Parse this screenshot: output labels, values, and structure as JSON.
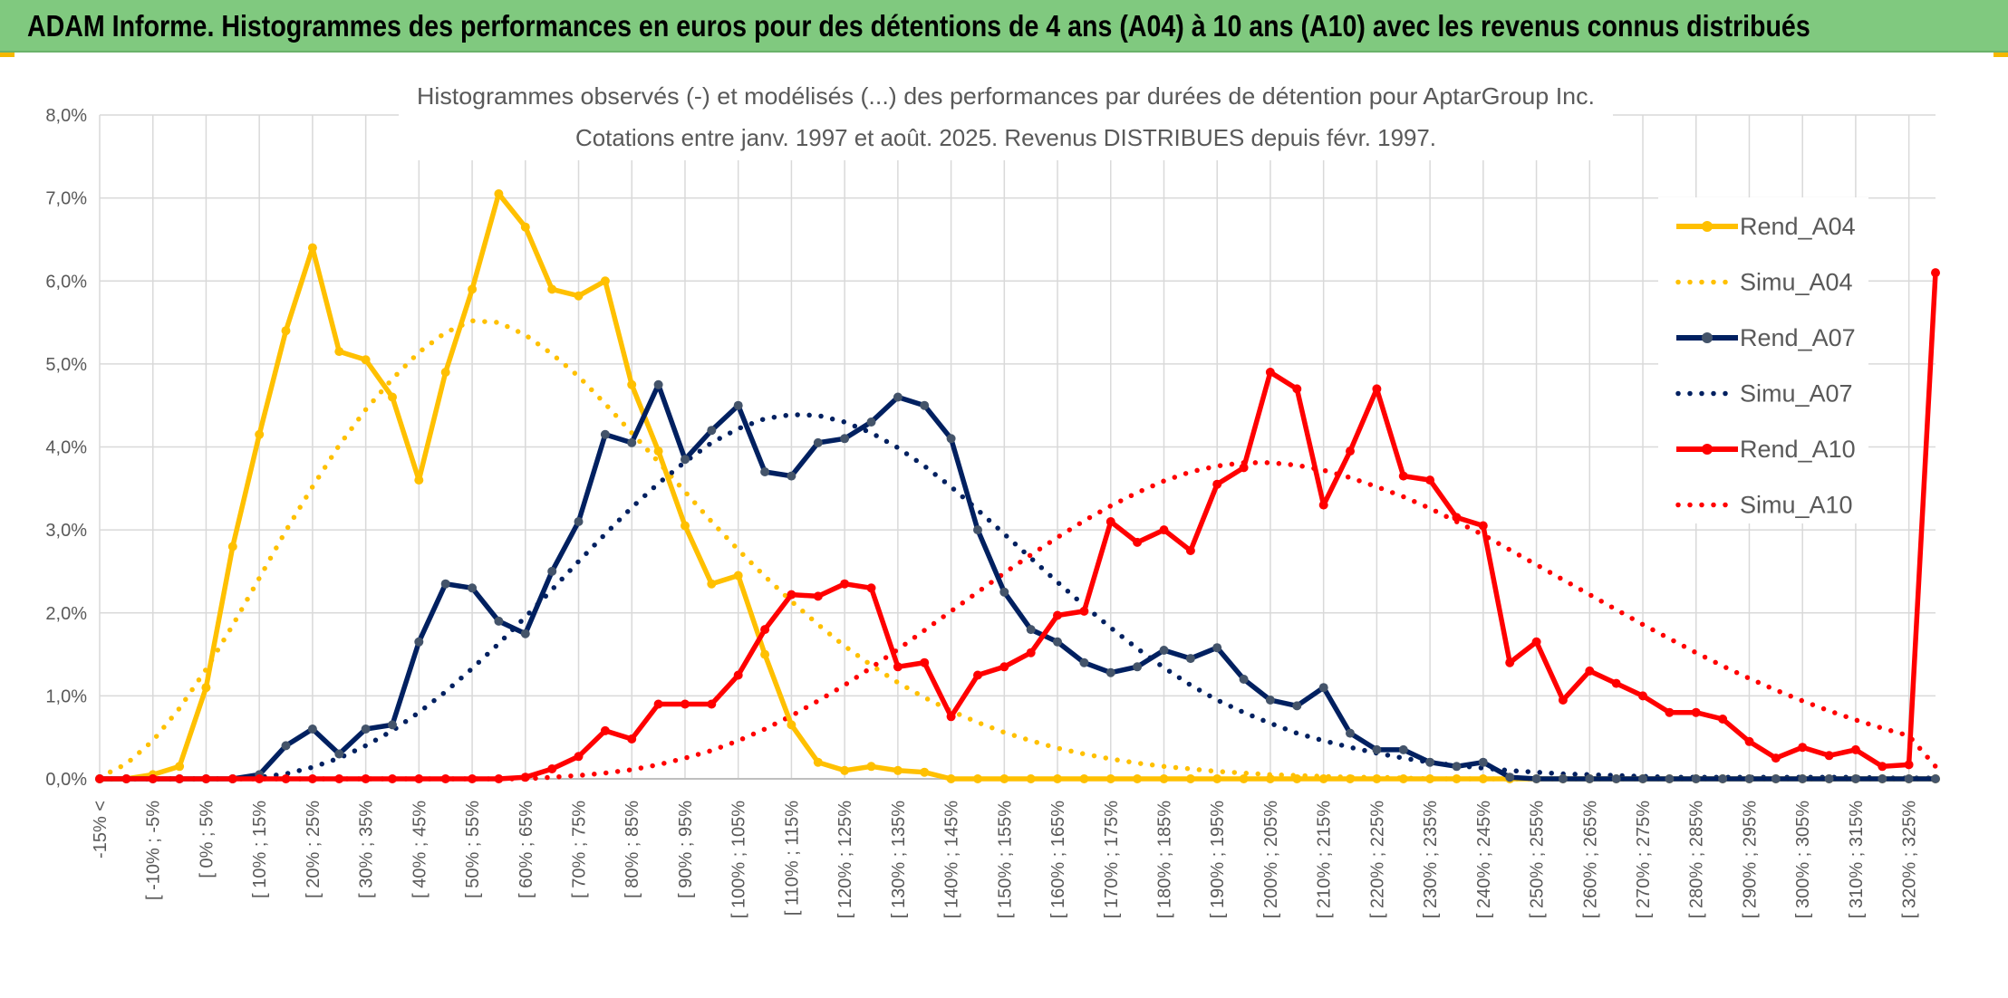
{
  "header": {
    "title": "ADAM Informe. Histogrammes des performances en euros pour des détentions de 4 ans (A04) à 10 ans (A10) avec les revenus connus distribués"
  },
  "colors": {
    "banner": "#80c97f",
    "a04": "#ffc000",
    "a07": "#002060",
    "a10": "#ff0000",
    "grid": "#d9d9d9",
    "text": "#595959"
  },
  "chart_data": {
    "type": "line",
    "title": [
      "Histogrammes observés (-) et modélisés (...) des performances par durées de détention pour AptarGroup Inc.",
      "Cotations entre janv. 1997 et août. 2025. Revenus DISTRIBUES depuis févr. 1997."
    ],
    "xlabel": "",
    "ylabel": "",
    "ylim": [
      0,
      8
    ],
    "y_unit": "%",
    "yticks": [
      "0,0%",
      "1,0%",
      "2,0%",
      "3,0%",
      "4,0%",
      "5,0%",
      "6,0%",
      "7,0%",
      "8,0%"
    ],
    "grid": true,
    "legend_position": "right",
    "x_tick_labels": [
      "-15% <",
      "[ -10% ; -5%",
      "[ 0% ; 5%",
      "[ 10% ; 15%",
      "[ 20% ; 25%",
      "[ 30% ; 35%",
      "[ 40% ; 45%",
      "[ 50% ; 55%",
      "[ 60% ; 65%",
      "[ 70% ; 75%",
      "[ 80% ; 85%",
      "[ 90% ; 95%",
      "[ 100% ; 105%",
      "[ 110% ; 115%",
      "[ 120% ; 125%",
      "[ 130% ; 135%",
      "[ 140% ; 145%",
      "[ 150% ; 155%",
      "[ 160% ; 165%",
      "[ 170% ; 175%",
      "[ 180% ; 185%",
      "[ 190% ; 195%",
      "[ 200% ; 205%",
      "[ 210% ; 215%",
      "[ 220% ; 225%",
      "[ 230% ; 235%",
      "[ 240% ; 245%",
      "[ 250% ; 255%",
      "[ 260% ; 265%",
      "[ 270% ; 275%",
      "[ 280% ; 285%",
      "[ 290% ; 295%",
      "[ 300% ; 305%",
      "[ 310% ; 315%",
      "[ 320% ; 325%"
    ],
    "x_start_percent": -15,
    "x_step_percent": 5,
    "series": [
      {
        "name": "Rend_A04",
        "style": "solid",
        "color": "#ffc000",
        "values": [
          0,
          0,
          0.05,
          0.15,
          1.1,
          2.8,
          4.15,
          5.4,
          6.4,
          5.15,
          5.05,
          4.6,
          3.6,
          4.9,
          5.9,
          7.05,
          6.65,
          5.9,
          5.82,
          6.0,
          4.75,
          3.95,
          3.05,
          2.35,
          2.45,
          1.5,
          0.65,
          0.2,
          0.1,
          0.15,
          0.1,
          0.08,
          0,
          0,
          0,
          0,
          0,
          0,
          0,
          0,
          0,
          0,
          0,
          0,
          0,
          0,
          0,
          0,
          0,
          0,
          0,
          0,
          0,
          0,
          0,
          0,
          0,
          0,
          0,
          0,
          0,
          0,
          0,
          0,
          0,
          0,
          0,
          0,
          0,
          0
        ]
      },
      {
        "name": "Simu_A04",
        "style": "dotted",
        "color": "#ffc000",
        "values": [
          0.02,
          0.18,
          0.46,
          0.85,
          1.32,
          1.85,
          2.42,
          2.99,
          3.52,
          4.02,
          4.45,
          4.82,
          5.14,
          5.38,
          5.52,
          5.5,
          5.35,
          5.12,
          4.85,
          4.52,
          4.17,
          3.82,
          3.46,
          3.1,
          2.76,
          2.44,
          2.14,
          1.86,
          1.6,
          1.37,
          1.16,
          0.98,
          0.82,
          0.68,
          0.56,
          0.46,
          0.37,
          0.3,
          0.24,
          0.19,
          0.15,
          0.12,
          0.09,
          0.07,
          0.05,
          0.04,
          0.03,
          0.02,
          0.02,
          0.01,
          0,
          0,
          0,
          0,
          0,
          0,
          0,
          0,
          0,
          0,
          0,
          0,
          0,
          0,
          0,
          0,
          0,
          0,
          0,
          0
        ]
      },
      {
        "name": "Rend_A07",
        "style": "solid",
        "color": "#002060",
        "values": [
          0,
          0,
          0,
          0,
          0,
          0,
          0.05,
          0.4,
          0.6,
          0.3,
          0.6,
          0.65,
          1.65,
          2.35,
          2.3,
          1.9,
          1.75,
          2.5,
          3.1,
          4.15,
          4.05,
          4.75,
          3.85,
          4.2,
          4.5,
          3.7,
          3.65,
          4.05,
          4.1,
          4.3,
          4.6,
          4.5,
          4.1,
          3.0,
          2.25,
          1.8,
          1.65,
          1.4,
          1.28,
          1.35,
          1.55,
          1.45,
          1.58,
          1.2,
          0.95,
          0.88,
          1.1,
          0.55,
          0.35,
          0.35,
          0.2,
          0.15,
          0.2,
          0.02,
          0,
          0,
          0,
          0,
          0,
          0,
          0,
          0,
          0,
          0,
          0,
          0,
          0,
          0,
          0,
          0
        ]
      },
      {
        "name": "Simu_A07",
        "style": "dotted",
        "color": "#002060",
        "values": [
          0,
          0,
          0,
          0,
          0,
          0,
          0.02,
          0.06,
          0.14,
          0.25,
          0.4,
          0.58,
          0.8,
          1.05,
          1.33,
          1.63,
          1.95,
          2.28,
          2.62,
          2.95,
          3.27,
          3.56,
          3.82,
          4.05,
          4.22,
          4.34,
          4.39,
          4.38,
          4.3,
          4.17,
          3.99,
          3.77,
          3.52,
          3.24,
          2.95,
          2.66,
          2.37,
          2.09,
          1.82,
          1.57,
          1.34,
          1.13,
          0.95,
          0.8,
          0.67,
          0.55,
          0.46,
          0.38,
          0.31,
          0.25,
          0.2,
          0.16,
          0.13,
          0.1,
          0.08,
          0.06,
          0.05,
          0.04,
          0.03,
          0.02,
          0.02,
          0.02,
          0.02,
          0.02,
          0.02,
          0.02,
          0.02,
          0.01,
          0.01,
          0.01
        ]
      },
      {
        "name": "Rend_A10",
        "style": "solid",
        "color": "#ff0000",
        "values": [
          0,
          0,
          0,
          0,
          0,
          0,
          0,
          0,
          0,
          0,
          0,
          0,
          0,
          0,
          0,
          0,
          0.02,
          0.12,
          0.27,
          0.58,
          0.48,
          0.9,
          0.9,
          0.9,
          1.25,
          1.8,
          2.22,
          2.2,
          2.35,
          2.3,
          1.35,
          1.4,
          0.75,
          1.25,
          1.35,
          1.52,
          1.97,
          2.02,
          3.1,
          2.85,
          3.0,
          2.75,
          3.55,
          3.75,
          4.9,
          4.7,
          3.3,
          3.95,
          4.7,
          3.65,
          3.6,
          3.15,
          3.05,
          1.4,
          1.65,
          0.95,
          1.3,
          1.15,
          1.0,
          0.8,
          0.8,
          0.72,
          0.45,
          0.25,
          0.38,
          0.28,
          0.35,
          0.15,
          0.17,
          6.1
        ]
      },
      {
        "name": "Simu_A10",
        "style": "dotted",
        "color": "#ff0000",
        "values": [
          0,
          0,
          0,
          0,
          0,
          0,
          0,
          0,
          0,
          0,
          0,
          0,
          0,
          0,
          0,
          0,
          0,
          0.02,
          0.04,
          0.07,
          0.11,
          0.17,
          0.25,
          0.34,
          0.46,
          0.6,
          0.76,
          0.94,
          1.13,
          1.34,
          1.56,
          1.79,
          2.02,
          2.25,
          2.48,
          2.7,
          2.91,
          3.11,
          3.29,
          3.45,
          3.59,
          3.7,
          3.77,
          3.81,
          3.81,
          3.78,
          3.72,
          3.63,
          3.52,
          3.4,
          3.26,
          3.1,
          2.94,
          2.76,
          2.58,
          2.4,
          2.22,
          2.04,
          1.86,
          1.69,
          1.52,
          1.36,
          1.21,
          1.07,
          0.94,
          0.82,
          0.71,
          0.61,
          0.52,
          0.15
        ]
      }
    ]
  }
}
